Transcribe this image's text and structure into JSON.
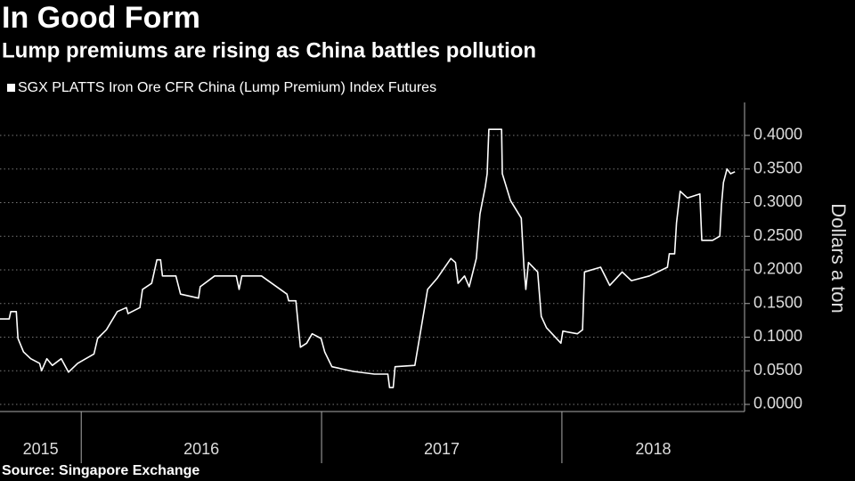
{
  "chart_data": {
    "type": "line",
    "title": "In Good Form",
    "subtitle": "Lump premiums are rising as China battles pollution",
    "source": "Source: Singapore Exchange",
    "y_label": "Dollars a ton",
    "x": [
      2015.662,
      2015.7,
      2015.707,
      2015.73,
      2015.737,
      2015.76,
      2015.79,
      2015.827,
      2015.835,
      2015.857,
      2015.88,
      2015.917,
      2015.947,
      2015.985,
      2016.019,
      2016.053,
      2016.068,
      2016.105,
      2016.15,
      2016.188,
      2016.195,
      2016.244,
      2016.255,
      2016.293,
      2016.315,
      2016.33,
      2016.338,
      2016.394,
      2016.413,
      2016.488,
      2016.495,
      2016.555,
      2016.645,
      2016.657,
      2016.668,
      2016.75,
      2016.856,
      2016.863,
      2016.893,
      2016.912,
      2016.938,
      2016.961,
      2016.998,
      2017.013,
      2017.043,
      2017.133,
      2017.22,
      2017.276,
      2017.283,
      2017.298,
      2017.306,
      2017.388,
      2017.407,
      2017.426,
      2017.441,
      2017.482,
      2017.538,
      2017.557,
      2017.568,
      2017.595,
      2017.614,
      2017.644,
      2017.659,
      2017.681,
      2017.689,
      2017.696,
      2017.749,
      2017.752,
      2017.786,
      2017.831,
      2017.842,
      2017.85,
      2017.861,
      2017.899,
      2017.914,
      2017.936,
      2017.996,
      2018.004,
      2018.064,
      2018.086,
      2018.094,
      2018.161,
      2018.199,
      2018.251,
      2018.289,
      2018.364,
      2018.439,
      2018.447,
      2018.469,
      2018.477,
      2018.492,
      2018.522,
      2018.574,
      2018.582,
      2018.627,
      2018.657,
      2018.664,
      2018.672,
      2018.687,
      2018.702,
      2018.72
    ],
    "series": [
      {
        "name": "SGX PLATTS Iron Ore CFR China (Lump Premium) Index Futures",
        "color": "#ffffff",
        "values": [
          0.127,
          0.127,
          0.138,
          0.138,
          0.098,
          0.078,
          0.068,
          0.061,
          0.05,
          0.068,
          0.058,
          0.068,
          0.048,
          0.061,
          0.068,
          0.075,
          0.098,
          0.111,
          0.138,
          0.144,
          0.135,
          0.144,
          0.171,
          0.18,
          0.215,
          0.215,
          0.191,
          0.191,
          0.164,
          0.158,
          0.175,
          0.191,
          0.191,
          0.171,
          0.191,
          0.191,
          0.164,
          0.154,
          0.154,
          0.085,
          0.091,
          0.105,
          0.098,
          0.078,
          0.056,
          0.049,
          0.045,
          0.045,
          0.025,
          0.025,
          0.056,
          0.058,
          0.098,
          0.138,
          0.171,
          0.188,
          0.217,
          0.211,
          0.18,
          0.191,
          0.175,
          0.217,
          0.283,
          0.323,
          0.343,
          0.409,
          0.409,
          0.343,
          0.303,
          0.277,
          0.204,
          0.171,
          0.211,
          0.197,
          0.131,
          0.114,
          0.091,
          0.109,
          0.105,
          0.111,
          0.197,
          0.204,
          0.177,
          0.197,
          0.184,
          0.191,
          0.204,
          0.224,
          0.224,
          0.27,
          0.317,
          0.307,
          0.313,
          0.244,
          0.244,
          0.25,
          0.297,
          0.33,
          0.35,
          0.343,
          0.346
        ]
      }
    ],
    "xlim": [
      2015.662,
      2018.76
    ],
    "xticks": [
      2015,
      2016,
      2017,
      2018
    ],
    "ylim": [
      -0.0106,
      0.449
    ],
    "yticks": [
      {
        "value": 0,
        "label": "0.0000"
      },
      {
        "value": 0.05,
        "label": "0.0500"
      },
      {
        "value": 0.1,
        "label": "0.1000"
      },
      {
        "value": 0.15,
        "label": "0.1500"
      },
      {
        "value": 0.2,
        "label": "0.2000"
      },
      {
        "value": 0.25,
        "label": "0.2500"
      },
      {
        "value": 0.3,
        "label": "0.3000"
      },
      {
        "value": 0.35,
        "label": "0.3500"
      },
      {
        "value": 0.4,
        "label": "0.4000"
      }
    ],
    "grid": true
  }
}
